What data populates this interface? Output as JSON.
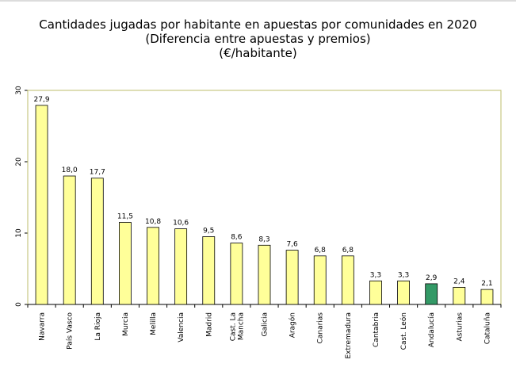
{
  "chart_data": {
    "type": "bar",
    "title": "Cantidades jugadas por habitante en apuestas por comunidades en 2020",
    "subtitle": "(Diferencia entre apuestas y premios)",
    "unit_label": "(€/habitante)",
    "xlabel": "",
    "ylabel": "",
    "ylim": [
      0,
      30
    ],
    "yticks": [
      0,
      10,
      20,
      30
    ],
    "grid": false,
    "categories": [
      "Navarra",
      "País Vasco",
      "La Rioja",
      "Murcia",
      "Melilla",
      "Valencia",
      "Madrid",
      "Cast. La Mancha",
      "Galicia",
      "Aragón",
      "Canarias",
      "Extremadura",
      "Cantabria",
      "Cast. León",
      "Andalucía",
      "Asturias",
      "Cataluña"
    ],
    "category_label_lines": [
      [
        "Navarra"
      ],
      [
        "País Vasco"
      ],
      [
        "La Rioja"
      ],
      [
        "Murcia"
      ],
      [
        "Melilla"
      ],
      [
        "Valencia"
      ],
      [
        "Madrid"
      ],
      [
        "Cast. La",
        "Mancha"
      ],
      [
        "Galicia"
      ],
      [
        "Aragón"
      ],
      [
        "Canarias"
      ],
      [
        "Extremadura"
      ],
      [
        "Cantabria"
      ],
      [
        "Cast. León"
      ],
      [
        "Andalucía"
      ],
      [
        "Asturias"
      ],
      [
        "Cataluña"
      ]
    ],
    "values": [
      27.9,
      18.0,
      17.7,
      11.5,
      10.8,
      10.6,
      9.5,
      8.6,
      8.3,
      7.6,
      6.8,
      6.8,
      3.3,
      3.3,
      2.9,
      2.4,
      2.1
    ],
    "value_labels": [
      "27,9",
      "18,0",
      "17,7",
      "11,5",
      "10,8",
      "10,6",
      "9,5",
      "8,6",
      "8,3",
      "7,6",
      "6,8",
      "6,8",
      "3,3",
      "3,3",
      "2,9",
      "2,4",
      "2,1"
    ],
    "highlight_category": "Andalucía",
    "colors": {
      "bar": "#ffff99",
      "highlight": "#339966",
      "frame": "#bdbd6b",
      "bar_stroke": "#000000"
    }
  }
}
